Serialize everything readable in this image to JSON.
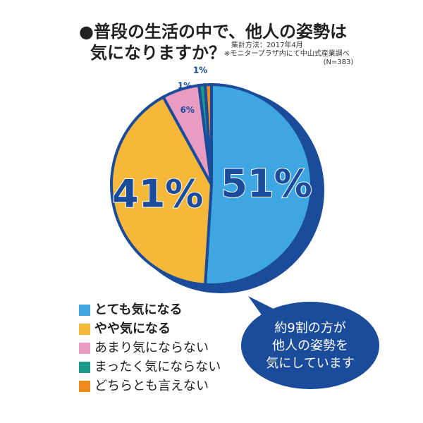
{
  "chart_data": {
    "type": "pie",
    "title": [
      "●普段の生活の中で、他人の姿勢は",
      "気になりますか？"
    ],
    "note": [
      "集計方法：2017年4月",
      "※モニタープラザ内にて中山式産業調べ",
      "(N=383)"
    ],
    "categories": [
      "とても気になる",
      "やや気になる",
      "あまり気にならない",
      "まったく気にならない",
      "どちらとも言えない"
    ],
    "values": [
      51,
      41,
      6,
      1,
      1
    ],
    "value_labels": [
      "51%",
      "41%",
      "6%",
      "1%",
      "1%"
    ],
    "colors": [
      "#3ea7e3",
      "#f5b83a",
      "#e99cc2",
      "#1b9a8c",
      "#f08a1c"
    ],
    "annotation": [
      "約9割の方が",
      "他人の姿勢を",
      "気にしています"
    ]
  }
}
